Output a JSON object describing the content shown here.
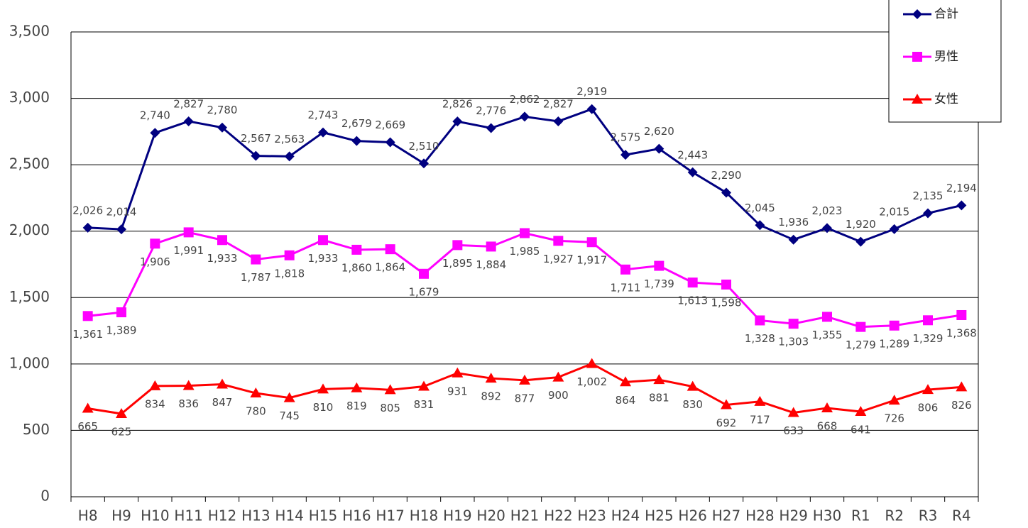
{
  "chart_data": {
    "type": "line",
    "categories": [
      "H8",
      "H9",
      "H10",
      "H11",
      "H12",
      "H13",
      "H14",
      "H15",
      "H16",
      "H17",
      "H18",
      "H19",
      "H20",
      "H21",
      "H22",
      "H23",
      "H24",
      "H25",
      "H26",
      "H27",
      "H28",
      "H29",
      "H30",
      "R1",
      "R2",
      "R3",
      "R4"
    ],
    "series": [
      {
        "name": "合計",
        "color": "#000080",
        "marker": "diamond",
        "values": [
          2026,
          2014,
          2740,
          2827,
          2780,
          2567,
          2563,
          2743,
          2679,
          2669,
          2510,
          2826,
          2776,
          2862,
          2827,
          2919,
          2575,
          2620,
          2443,
          2290,
          2045,
          1936,
          2023,
          1920,
          2015,
          2135,
          2194
        ],
        "value_labels": [
          "2,026",
          "2,014",
          "2,740",
          "2,827",
          "2,780",
          "2,567",
          "2,563",
          "2,743",
          "2,679",
          "2,669",
          "2,510",
          "2,826",
          "2,776",
          "2,862",
          "2,827",
          "2,919",
          "2,575",
          "2,620",
          "2,443",
          "2,290",
          "2,045",
          "1,936",
          "2,023",
          "1,920",
          "2,015",
          "2,135",
          "2,194"
        ]
      },
      {
        "name": "男性",
        "color": "#ff00ff",
        "marker": "square",
        "values": [
          1361,
          1389,
          1906,
          1991,
          1933,
          1787,
          1818,
          1933,
          1860,
          1864,
          1679,
          1895,
          1884,
          1985,
          1927,
          1917,
          1711,
          1739,
          1613,
          1598,
          1328,
          1303,
          1355,
          1279,
          1289,
          1329,
          1368
        ],
        "value_labels": [
          "1,361",
          "1,389",
          "1,906",
          "1,991",
          "1,933",
          "1,787",
          "1,818",
          "1,933",
          "1,860",
          "1,864",
          "1,679",
          "1,895",
          "1,884",
          "1,985",
          "1,927",
          "1,917",
          "1,711",
          "1,739",
          "1,613",
          "1,598",
          "1,328",
          "1,303",
          "1,355",
          "1,279",
          "1,289",
          "1,329",
          "1,368"
        ]
      },
      {
        "name": "女性",
        "color": "#ff0000",
        "marker": "triangle",
        "values": [
          665,
          625,
          834,
          836,
          847,
          780,
          745,
          810,
          819,
          805,
          831,
          931,
          892,
          877,
          900,
          1002,
          864,
          881,
          830,
          692,
          717,
          633,
          668,
          641,
          726,
          806,
          826
        ],
        "value_labels": [
          "665",
          "625",
          "834",
          "836",
          "847",
          "780",
          "745",
          "810",
          "819",
          "805",
          "831",
          "931",
          "892",
          "877",
          "900",
          "1,002",
          "864",
          "881",
          "830",
          "692",
          "717",
          "633",
          "668",
          "641",
          "726",
          "806",
          "826"
        ]
      }
    ],
    "ylim": [
      0,
      3500
    ],
    "yticks": [
      0,
      500,
      {
        "value": 1000,
        "label": "1,000"
      },
      {
        "value": 1500,
        "label": "1,500"
      },
      {
        "value": 2000,
        "label": "2,000"
      },
      {
        "value": 2500,
        "label": "2,500"
      },
      {
        "value": 3000,
        "label": "3,000"
      },
      {
        "value": 3500,
        "label": "3,500"
      }
    ],
    "grid": true,
    "legend": "top-right"
  }
}
